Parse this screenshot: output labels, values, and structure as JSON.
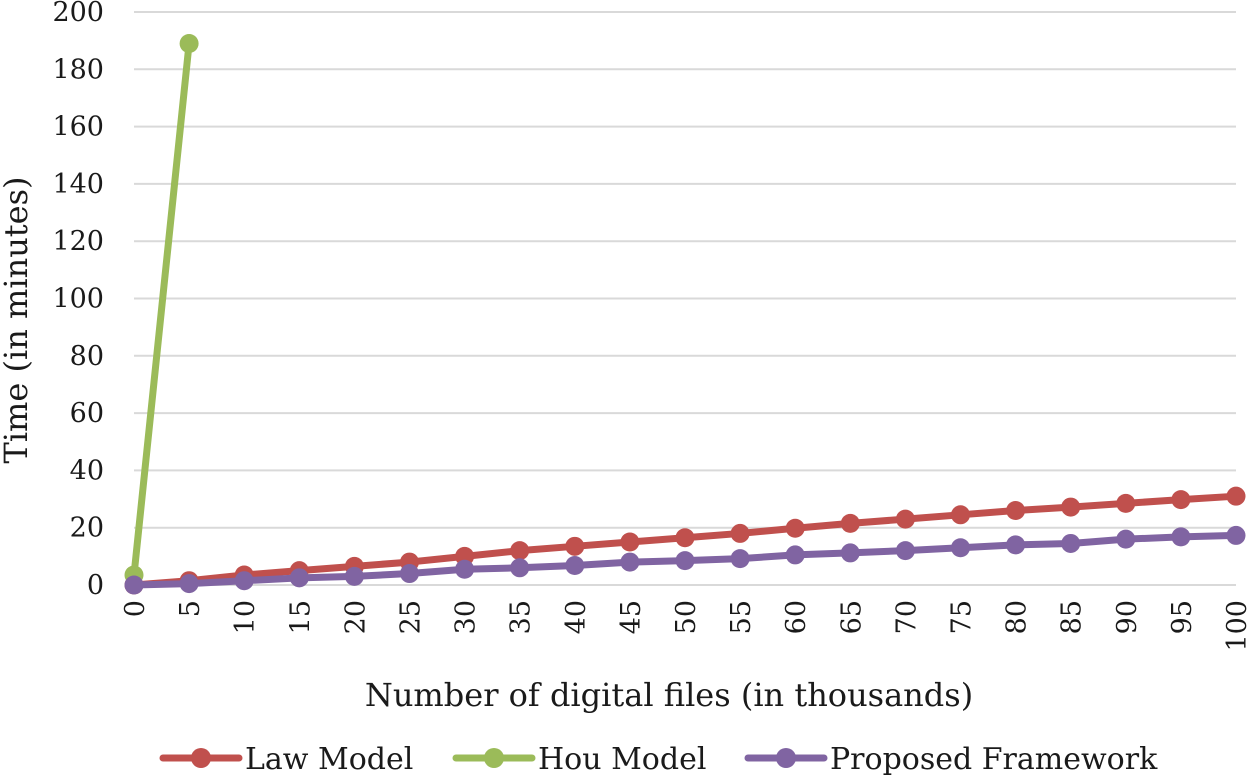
{
  "chart_data": {
    "type": "line",
    "title": "",
    "xlabel": "Number of digital files (in thousands)",
    "ylabel": "Time (in minutes)",
    "ylim": [
      0,
      200
    ],
    "yticks": [
      0,
      20,
      40,
      60,
      80,
      100,
      120,
      140,
      160,
      180,
      200
    ],
    "categories": [
      "0",
      "5",
      "10",
      "15",
      "20",
      "25",
      "30",
      "35",
      "40",
      "45",
      "50",
      "55",
      "60",
      "65",
      "70",
      "75",
      "80",
      "85",
      "90",
      "95",
      "100"
    ],
    "grid": true,
    "legend_position": "bottom",
    "series": [
      {
        "name": "Law Model",
        "color": "#c0504d",
        "values": [
          0,
          1.5,
          3.5,
          5,
          6.5,
          8,
          10,
          12,
          13.5,
          15,
          16.5,
          18,
          19.8,
          21.5,
          23,
          24.5,
          26,
          27.2,
          28.5,
          29.8,
          31
        ]
      },
      {
        "name": "Hou Model",
        "color": "#9bbb59",
        "values": [
          3.5,
          189,
          null,
          null,
          null,
          null,
          null,
          null,
          null,
          null,
          null,
          null,
          null,
          null,
          null,
          null,
          null,
          null,
          null,
          null,
          null
        ]
      },
      {
        "name": "Proposed Framework",
        "color": "#8064a2",
        "values": [
          0,
          0.5,
          1.5,
          2.5,
          3,
          4,
          5.5,
          6,
          6.8,
          8,
          8.5,
          9.2,
          10.5,
          11.2,
          12,
          13,
          14,
          14.5,
          16,
          16.8,
          17.3
        ]
      }
    ]
  }
}
